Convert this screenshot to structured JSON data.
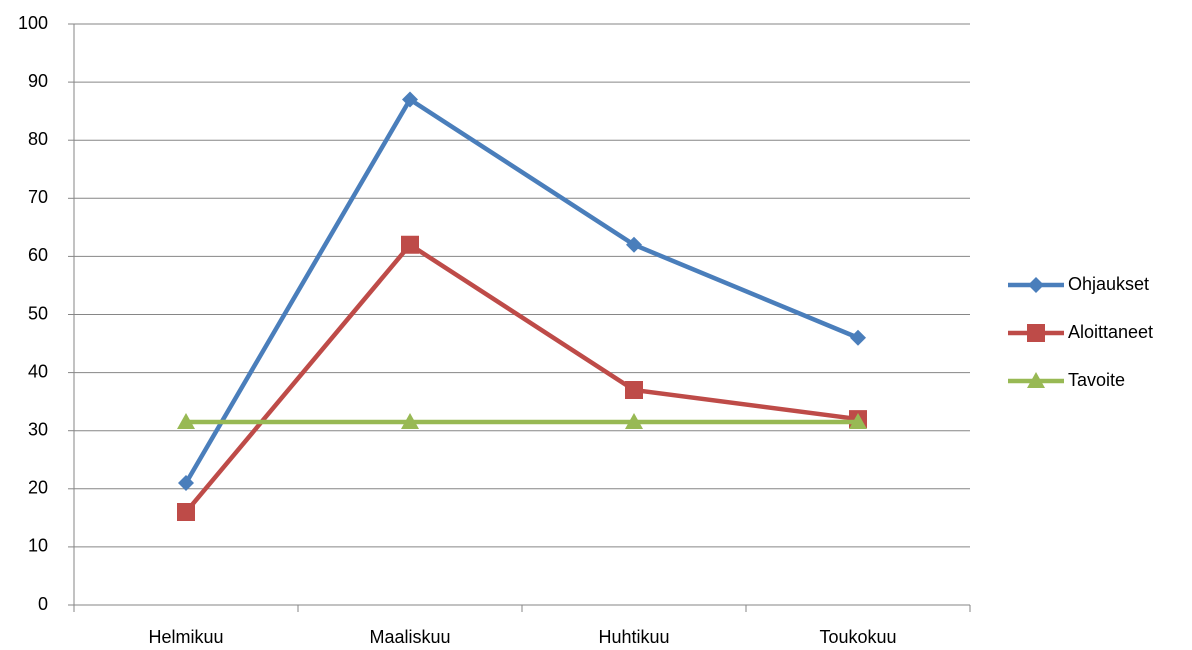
{
  "chart_data": {
    "type": "line",
    "categories": [
      "Helmikuu",
      "Maaliskuu",
      "Huhtikuu",
      "Toukokuu"
    ],
    "series": [
      {
        "name": "Ohjaukset",
        "color": "#4a7ebb",
        "marker": "diamond",
        "values": [
          21,
          87,
          62,
          46
        ]
      },
      {
        "name": "Aloittaneet",
        "color": "#be4b48",
        "marker": "square",
        "values": [
          16,
          62,
          37,
          32
        ]
      },
      {
        "name": "Tavoite",
        "color": "#98b954",
        "marker": "triangle",
        "values": [
          31.5,
          31.5,
          31.5,
          31.5
        ]
      }
    ],
    "ylim": [
      0,
      100
    ],
    "yticks": [
      0,
      10,
      20,
      30,
      40,
      50,
      60,
      70,
      80,
      90,
      100
    ],
    "grid": true,
    "legend": "right"
  }
}
